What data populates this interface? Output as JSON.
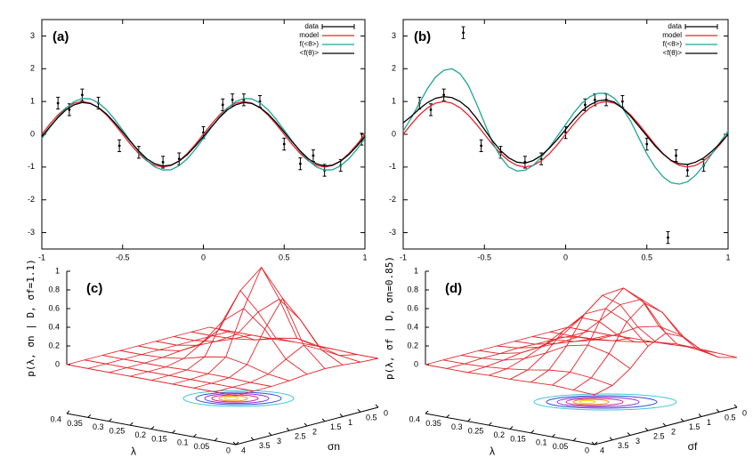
{
  "chart_data": [
    {
      "type": "line",
      "title": "(a)",
      "xlim": [
        -1,
        1
      ],
      "ylim": [
        -3.5,
        3.5
      ],
      "xticks": [
        -1,
        -0.5,
        0,
        0.5,
        1
      ],
      "yticks": [
        -3,
        -2,
        -1,
        0,
        1,
        2,
        3
      ],
      "legend": "top right",
      "x": [
        -1,
        -0.95,
        -0.9,
        -0.85,
        -0.8,
        -0.75,
        -0.7,
        -0.65,
        -0.6,
        -0.55,
        -0.5,
        -0.45,
        -0.4,
        -0.35,
        -0.3,
        -0.25,
        -0.2,
        -0.15,
        -0.1,
        -0.05,
        0,
        0.05,
        0.1,
        0.15,
        0.2,
        0.25,
        0.3,
        0.35,
        0.4,
        0.45,
        0.5,
        0.55,
        0.6,
        0.65,
        0.7,
        0.75,
        0.8,
        0.85,
        0.9,
        0.95,
        1
      ],
      "series": [
        {
          "name": "data",
          "color": "#000000",
          "mode": "points",
          "x": [
            -0.9,
            -0.83,
            -0.75,
            -0.65,
            -0.52,
            -0.4,
            -0.25,
            -0.15,
            0,
            0.12,
            0.18,
            0.25,
            0.35,
            0.5,
            0.6,
            0.68,
            0.75,
            0.85,
            0.98
          ],
          "values": [
            0.95,
            0.75,
            1.2,
            0.95,
            -0.35,
            -0.55,
            -0.85,
            -0.75,
            0.05,
            0.9,
            1.05,
            1.05,
            1.0,
            -0.3,
            -0.9,
            -0.65,
            -1.1,
            -0.95,
            -0.15
          ],
          "errors": [
            0.18,
            0.18,
            0.18,
            0.18,
            0.18,
            0.18,
            0.18,
            0.18,
            0.18,
            0.18,
            0.18,
            0.18,
            0.18,
            0.18,
            0.18,
            0.18,
            0.18,
            0.18,
            0.18
          ]
        },
        {
          "name": "model",
          "color": "#e4262b",
          "values": [
            0,
            0.31,
            0.59,
            0.81,
            0.95,
            1,
            0.95,
            0.81,
            0.59,
            0.31,
            0,
            -0.31,
            -0.59,
            -0.81,
            -0.95,
            -1,
            -0.95,
            -0.81,
            -0.59,
            -0.31,
            0,
            0.31,
            0.59,
            0.81,
            0.95,
            1,
            0.95,
            0.81,
            0.59,
            0.31,
            0,
            -0.31,
            -0.59,
            -0.81,
            -0.95,
            -1,
            -0.95,
            -0.81,
            -0.59,
            -0.31,
            0
          ]
        },
        {
          "name": "f(<θ>)",
          "color": "#1fa596",
          "values": [
            -0.13,
            0.21,
            0.53,
            0.8,
            1.0,
            1.09,
            1.08,
            0.96,
            0.75,
            0.46,
            0.13,
            -0.21,
            -0.53,
            -0.8,
            -1.0,
            -1.09,
            -1.08,
            -0.96,
            -0.75,
            -0.46,
            -0.13,
            0.21,
            0.53,
            0.8,
            1.0,
            1.09,
            1.08,
            0.96,
            0.75,
            0.46,
            0.13,
            -0.21,
            -0.53,
            -0.8,
            -1.0,
            -1.09,
            -1.08,
            -0.96,
            -0.75,
            -0.46,
            -0.13
          ]
        },
        {
          "name": "<f(θ)>",
          "color": "#000000",
          "values": [
            -0.07,
            0.23,
            0.51,
            0.75,
            0.9,
            0.97,
            0.94,
            0.82,
            0.62,
            0.36,
            0.07,
            -0.23,
            -0.51,
            -0.75,
            -0.9,
            -0.97,
            -0.94,
            -0.82,
            -0.62,
            -0.36,
            -0.07,
            0.23,
            0.51,
            0.75,
            0.9,
            0.97,
            0.94,
            0.82,
            0.62,
            0.36,
            0.07,
            -0.23,
            -0.51,
            -0.75,
            -0.9,
            -0.97,
            -0.94,
            -0.82,
            -0.62,
            -0.36,
            -0.07
          ]
        }
      ]
    },
    {
      "type": "line",
      "title": "(b)",
      "xlim": [
        -1,
        1
      ],
      "ylim": [
        -3.5,
        3.5
      ],
      "xticks": [
        -1,
        -0.5,
        0,
        0.5,
        1
      ],
      "yticks": [
        -3,
        -2,
        -1,
        0,
        1,
        2,
        3
      ],
      "legend": "top right",
      "x": [
        -1,
        -0.95,
        -0.9,
        -0.85,
        -0.8,
        -0.75,
        -0.7,
        -0.65,
        -0.6,
        -0.55,
        -0.5,
        -0.45,
        -0.4,
        -0.35,
        -0.3,
        -0.25,
        -0.2,
        -0.15,
        -0.1,
        -0.05,
        0,
        0.05,
        0.1,
        0.15,
        0.2,
        0.25,
        0.3,
        0.35,
        0.4,
        0.45,
        0.5,
        0.55,
        0.6,
        0.65,
        0.7,
        0.75,
        0.8,
        0.85,
        0.9,
        0.95,
        1
      ],
      "series": [
        {
          "name": "data",
          "color": "#000000",
          "mode": "points",
          "x": [
            -0.9,
            -0.83,
            -0.75,
            -0.63,
            -0.52,
            -0.4,
            -0.25,
            -0.15,
            0,
            0.12,
            0.18,
            0.25,
            0.35,
            0.5,
            0.63,
            0.68,
            0.75,
            0.85
          ],
          "values": [
            0.95,
            0.75,
            1.2,
            3.1,
            -0.35,
            -0.55,
            -0.85,
            -0.75,
            0.05,
            0.9,
            1.05,
            1.05,
            1.0,
            -0.3,
            -3.15,
            -0.65,
            -1.1,
            -0.95
          ],
          "errors": [
            0.18,
            0.18,
            0.18,
            0.18,
            0.18,
            0.18,
            0.18,
            0.18,
            0.18,
            0.18,
            0.18,
            0.18,
            0.18,
            0.18,
            0.18,
            0.18,
            0.18,
            0.18
          ]
        },
        {
          "name": "model",
          "color": "#e4262b",
          "values": [
            0,
            0.31,
            0.59,
            0.81,
            0.95,
            1,
            0.95,
            0.81,
            0.59,
            0.31,
            0,
            -0.31,
            -0.59,
            -0.81,
            -0.95,
            -1,
            -0.95,
            -0.81,
            -0.59,
            -0.31,
            0,
            0.31,
            0.59,
            0.81,
            0.95,
            1,
            0.95,
            0.81,
            0.59,
            0.31,
            0,
            -0.31,
            -0.59,
            -0.81,
            -0.95,
            -1,
            -0.95,
            -0.81,
            -0.59,
            -0.31,
            0
          ]
        },
        {
          "name": "f(<θ>)",
          "color": "#1fa596",
          "values": [
            0.1,
            0.5,
            0.95,
            1.4,
            1.75,
            1.95,
            2.0,
            1.85,
            1.5,
            0.95,
            0.35,
            -0.25,
            -0.7,
            -1.0,
            -1.12,
            -1.1,
            -0.95,
            -0.7,
            -0.4,
            -0.05,
            0.3,
            0.65,
            0.95,
            1.15,
            1.25,
            1.25,
            1.1,
            0.8,
            0.4,
            -0.1,
            -0.6,
            -1.0,
            -1.3,
            -1.48,
            -1.52,
            -1.45,
            -1.25,
            -0.95,
            -0.6,
            -0.25,
            0.1
          ]
        },
        {
          "name": "<f(θ)>",
          "color": "#000000",
          "values": [
            0.35,
            0.55,
            0.78,
            0.97,
            1.1,
            1.15,
            1.12,
            1.0,
            0.8,
            0.5,
            0.15,
            -0.2,
            -0.5,
            -0.72,
            -0.85,
            -0.88,
            -0.8,
            -0.65,
            -0.42,
            -0.15,
            0.15,
            0.45,
            0.72,
            0.9,
            1.02,
            1.05,
            0.98,
            0.8,
            0.55,
            0.25,
            -0.05,
            -0.35,
            -0.6,
            -0.8,
            -0.9,
            -0.92,
            -0.85,
            -0.72,
            -0.52,
            -0.28,
            0.0
          ]
        }
      ]
    },
    {
      "type": "surface",
      "title": "(c)",
      "color": "#e4262b",
      "xlabel": "λ",
      "ylabel": "σn",
      "zlabel": "p(λ, σn | D, σf=1.1)",
      "xlim": [
        0.4,
        0
      ],
      "ylim": [
        4,
        0
      ],
      "zlim": [
        0,
        1
      ],
      "zticks": [
        0,
        0.2,
        0.4,
        0.6,
        0.8,
        1
      ],
      "x": [
        0.4,
        0.35,
        0.3,
        0.25,
        0.2,
        0.15,
        0.1,
        0.05,
        0
      ],
      "y": [
        4,
        3.5,
        3,
        2.5,
        2,
        1.5,
        1,
        0.5,
        0
      ],
      "z": [
        [
          0,
          0,
          0,
          0,
          0,
          0,
          0,
          0,
          0
        ],
        [
          0,
          0,
          0,
          0,
          0,
          0,
          0,
          0,
          0
        ],
        [
          0,
          0,
          0,
          0.01,
          0.03,
          0.04,
          0.03,
          0.01,
          0
        ],
        [
          0,
          0,
          0,
          0.04,
          0.15,
          0.25,
          0.15,
          0.04,
          0
        ],
        [
          0,
          0,
          0.01,
          0.1,
          0.43,
          0.71,
          0.43,
          0.1,
          0.01
        ],
        [
          0,
          0,
          0.01,
          0.14,
          0.61,
          1,
          0.61,
          0.14,
          0.01
        ],
        [
          0,
          0,
          0.01,
          0.1,
          0.43,
          0.71,
          0.43,
          0.1,
          0.01
        ],
        [
          0,
          0,
          0,
          0.04,
          0.15,
          0.25,
          0.15,
          0.04,
          0
        ],
        [
          0,
          0,
          0,
          0.01,
          0.03,
          0.04,
          0.03,
          0.01,
          0
        ]
      ]
    },
    {
      "type": "surface",
      "title": "(d)",
      "color": "#e4262b",
      "xlabel": "λ",
      "ylabel": "σf",
      "zlabel": "p(λ, σf | D, σn=0.85)",
      "xlim": [
        0.4,
        0
      ],
      "ylim": [
        4,
        0
      ],
      "zlim": [
        0,
        1
      ],
      "zticks": [
        0,
        0.2,
        0.4,
        0.6,
        0.8,
        1
      ],
      "x": [
        0.4,
        0.35,
        0.3,
        0.25,
        0.2,
        0.15,
        0.1,
        0.05,
        0
      ],
      "y": [
        4,
        3.5,
        3,
        2.5,
        2,
        1.5,
        1,
        0.5,
        0
      ],
      "z": [
        [
          0,
          0,
          0,
          0,
          0,
          0,
          0,
          0,
          0
        ],
        [
          0,
          0,
          0.01,
          0.01,
          0.02,
          0.01,
          0.01,
          0,
          0
        ],
        [
          0,
          0.01,
          0.03,
          0.06,
          0.07,
          0.06,
          0.03,
          0.01,
          0
        ],
        [
          0.01,
          0.03,
          0.09,
          0.17,
          0.22,
          0.17,
          0.09,
          0.03,
          0.01
        ],
        [
          0.01,
          0.06,
          0.19,
          0.38,
          0.47,
          0.38,
          0.19,
          0.06,
          0.01
        ],
        [
          0.02,
          0.1,
          0.31,
          0.6,
          0.75,
          0.6,
          0.31,
          0.1,
          0.02
        ],
        [
          0.03,
          0.12,
          0.36,
          0.7,
          0.87,
          0.7,
          0.36,
          0.12,
          0.03
        ],
        [
          0.02,
          0.1,
          0.31,
          0.6,
          0.75,
          0.6,
          0.31,
          0.1,
          0.02
        ],
        [
          0.01,
          0.06,
          0.19,
          0.38,
          0.47,
          0.38,
          0.19,
          0.06,
          0.01
        ]
      ]
    }
  ]
}
